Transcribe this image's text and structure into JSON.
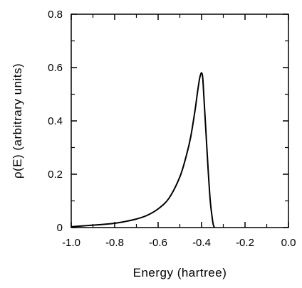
{
  "chart_data": {
    "type": "line",
    "title": "",
    "xlabel": "Energy (hartree)",
    "ylabel": "ρ(E) (arbitrary units)",
    "xlim": [
      -1.0,
      0.0
    ],
    "ylim": [
      0,
      0.8
    ],
    "x_ticks": [
      -1.0,
      -0.8,
      -0.6,
      -0.4,
      -0.2,
      0.0
    ],
    "x_tick_labels": [
      "-1.0",
      "-0.8",
      "-0.6",
      "-0.4",
      "-0.2",
      "0.0"
    ],
    "y_ticks": [
      0,
      0.2,
      0.4,
      0.6,
      0.8
    ],
    "y_tick_labels": [
      "0",
      "0.2",
      "0.4",
      "0.6",
      "0.8"
    ],
    "grid": false,
    "series": [
      {
        "color": "#000000",
        "x": [
          -1.0,
          -0.95,
          -0.9,
          -0.85,
          -0.8,
          -0.75,
          -0.7,
          -0.65,
          -0.6,
          -0.55,
          -0.5,
          -0.47,
          -0.45,
          -0.43,
          -0.42,
          -0.41,
          -0.405,
          -0.4,
          -0.395,
          -0.39,
          -0.38,
          -0.37,
          -0.36,
          -0.35,
          -0.345,
          -0.34
        ],
        "y": [
          0.003,
          0.006,
          0.009,
          0.012,
          0.016,
          0.023,
          0.032,
          0.046,
          0.07,
          0.11,
          0.19,
          0.27,
          0.34,
          0.44,
          0.5,
          0.555,
          0.572,
          0.58,
          0.565,
          0.5,
          0.36,
          0.22,
          0.1,
          0.03,
          0.008,
          0.0
        ]
      }
    ]
  }
}
